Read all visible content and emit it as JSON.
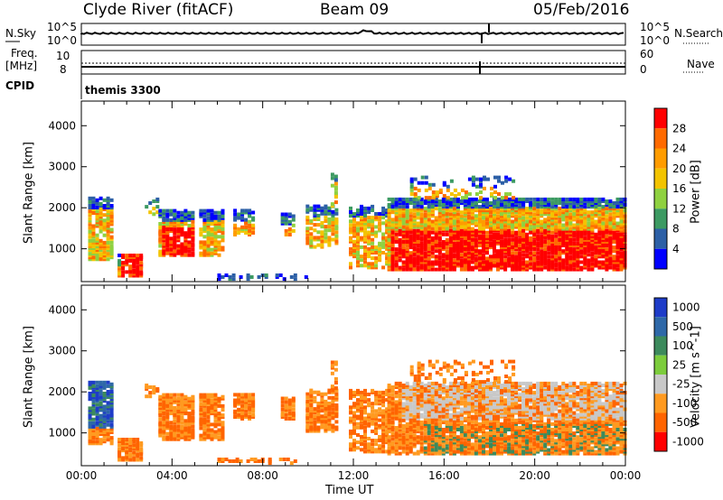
{
  "header": {
    "station": "Clyde River (fitACF)",
    "beam": "Beam 09",
    "date": "05/Feb/2016"
  },
  "strip_labels": {
    "nsky": "N.Sky",
    "nsky_top": "10^5",
    "nsky_bottom": "10^0",
    "nsearch": "N.Search",
    "nsearch_top": "10^5",
    "nsearch_bottom": "10^0",
    "freq": "Freq.",
    "freq_unit": "[MHz]",
    "freq_top": "10",
    "freq_bottom": "8",
    "nave": "Nave",
    "nave_top": "60",
    "nave_bottom": "0",
    "cpid": "CPID",
    "cpid_value": "themis 3300"
  },
  "x_axis_label": "Time UT",
  "chart_data": [
    {
      "type": "heatmap",
      "name": "power",
      "ylabel": "Slant Range [km]",
      "ylim": [
        200,
        4600
      ],
      "y_ticks": [
        1000,
        2000,
        3000,
        4000
      ],
      "x_ticks": [
        "00:00",
        "04:00",
        "08:00",
        "12:00",
        "16:00",
        "20:00",
        "00:00"
      ],
      "colorbar_label": "Power [dB]",
      "colorbar_ticks": [
        "28",
        "24",
        "20",
        "16",
        "12",
        "8",
        "4"
      ],
      "colorbar_colors": [
        "#ff0000",
        "#ff6a00",
        "#ff9c00",
        "#f3c400",
        "#8fd140",
        "#3c9a62",
        "#2c5fa6",
        "#0000ff"
      ]
    },
    {
      "type": "heatmap",
      "name": "velocity",
      "ylabel": "Slant Range [km]",
      "ylim": [
        200,
        4600
      ],
      "y_ticks": [
        1000,
        2000,
        3000,
        4000
      ],
      "x_ticks": [
        "00:00",
        "04:00",
        "08:00",
        "12:00",
        "16:00",
        "20:00",
        "00:00"
      ],
      "colorbar_label": "Velocity [m s^-1]",
      "colorbar_ticks": [
        "1000",
        "500",
        "100",
        "25",
        "-25",
        "-100",
        "-500",
        "-1000"
      ],
      "colorbar_colors": [
        "#1e3cc8",
        "#2e68a8",
        "#3c8a5c",
        "#7ccc3c",
        "#c8c8c8",
        "#ff9a20",
        "#ff6400",
        "#ff0000"
      ]
    }
  ]
}
